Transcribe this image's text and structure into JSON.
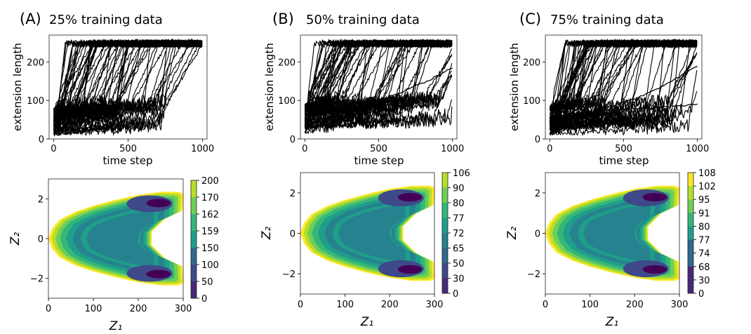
{
  "panels": [
    {
      "letter": "(A)",
      "title": "25% training data"
    },
    {
      "letter": "(B)",
      "title": "50% training data"
    },
    {
      "letter": "(C)",
      "title": "75% training data"
    }
  ],
  "colors": {
    "line": "#000000",
    "viridis": [
      "#440154",
      "#482878",
      "#3e4989",
      "#31688e",
      "#26828e",
      "#1f9e89",
      "#35b779",
      "#6ece58",
      "#b5de2b",
      "#fde725"
    ]
  },
  "chart_data": [
    {
      "type": "line",
      "panel": "A",
      "xlabel": "time step",
      "ylabel": "extension length",
      "xlim": [
        -30,
        1030
      ],
      "ylim": [
        0,
        270
      ],
      "xticks": [
        0,
        500,
        1000
      ],
      "yticks": [
        0,
        100,
        200
      ],
      "series_count_note": "many overlaid black trajectories",
      "n_curves": 70,
      "plateau": 248,
      "start_range": [
        10,
        80
      ],
      "rise_range": [
        20,
        990
      ],
      "tail_end": 780
    },
    {
      "type": "line",
      "panel": "B",
      "xlabel": "time step",
      "ylabel": "extension length",
      "xlim": [
        -30,
        1030
      ],
      "ylim": [
        0,
        270
      ],
      "xticks": [
        0,
        500,
        1000
      ],
      "yticks": [
        0,
        100,
        200
      ],
      "n_curves": 70,
      "plateau": 248,
      "start_range": [
        10,
        90
      ],
      "rise_range": [
        20,
        990
      ],
      "tail_end": 1000,
      "unfinished": [
        {
          "x": [
            300,
            1000
          ],
          "y": [
            90,
            185
          ]
        }
      ]
    },
    {
      "type": "line",
      "panel": "C",
      "xlabel": "time step",
      "ylabel": "extension length",
      "xlim": [
        -30,
        1030
      ],
      "ylim": [
        0,
        270
      ],
      "xticks": [
        0,
        500,
        1000
      ],
      "yticks": [
        0,
        100,
        200
      ],
      "n_curves": 70,
      "plateau": 248,
      "start_range": [
        10,
        90
      ],
      "rise_range": [
        20,
        990
      ],
      "tail_end": 1000,
      "unfinished": [
        {
          "x": [
            300,
            1000
          ],
          "y": [
            80,
            190
          ]
        },
        {
          "x": [
            300,
            1000
          ],
          "y": [
            75,
            90
          ]
        }
      ]
    },
    {
      "type": "heatmap",
      "panel": "A",
      "xlabel": "Z₁",
      "ylabel": "Z₂",
      "xlim": [
        0,
        300
      ],
      "ylim": [
        -3,
        3
      ],
      "xticks": [
        0,
        100,
        200,
        300
      ],
      "yticks": [
        2,
        0,
        -2
      ],
      "colorbar_ticks": [
        "200",
        "170",
        "162",
        "159",
        "150",
        "100",
        "50",
        "0"
      ]
    },
    {
      "type": "heatmap",
      "panel": "B",
      "xlabel": "Z₁",
      "ylabel": "Z₂",
      "xlim": [
        0,
        300
      ],
      "ylim": [
        -3,
        3
      ],
      "xticks": [
        0,
        100,
        200,
        300
      ],
      "yticks": [
        2,
        0,
        -2
      ],
      "colorbar_ticks": [
        "106",
        "90",
        "80",
        "77",
        "72",
        "65",
        "50",
        "30",
        "0"
      ]
    },
    {
      "type": "heatmap",
      "panel": "C",
      "xlabel": "Z₁",
      "ylabel": "Z₂",
      "xlim": [
        0,
        300
      ],
      "ylim": [
        -3,
        3
      ],
      "xticks": [
        0,
        100,
        200,
        300
      ],
      "yticks": [
        2,
        0,
        -2
      ],
      "colorbar_ticks": [
        "108",
        "102",
        "95",
        "91",
        "80",
        "77",
        "74",
        "68",
        "30",
        "0"
      ]
    }
  ]
}
